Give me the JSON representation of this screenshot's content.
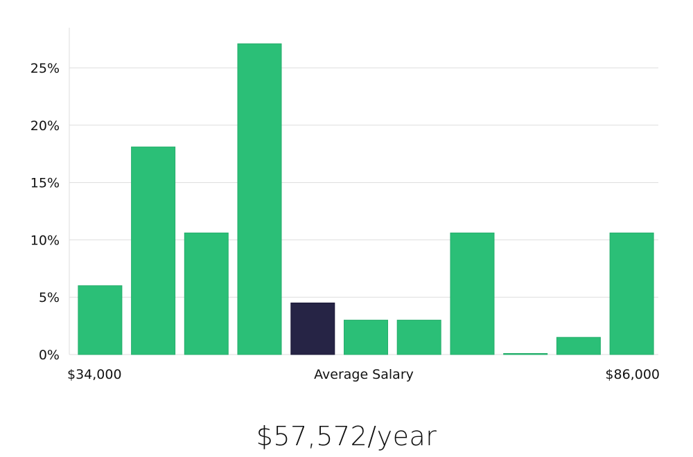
{
  "chart_data": {
    "type": "bar",
    "categories": [
      "1",
      "2",
      "3",
      "4",
      "5",
      "6",
      "7",
      "8",
      "9",
      "10",
      "11"
    ],
    "values": [
      6.0,
      18.1,
      10.6,
      27.1,
      4.5,
      3.0,
      3.0,
      10.6,
      0.0,
      1.5,
      10.6
    ],
    "highlight_index": 4,
    "ylim": [
      0,
      28.5
    ],
    "yticks": [
      0,
      5,
      10,
      15,
      20,
      25
    ],
    "ytick_labels": [
      "0%",
      "5%",
      "10%",
      "15%",
      "20%",
      "25%"
    ],
    "x_min_label": "$34,000",
    "x_center_label": "Average Salary",
    "x_max_label": "$86,000",
    "grid": true,
    "bar_color": "#2bbf77",
    "highlight_color": "#262445",
    "grid_color": "#dddddd"
  },
  "summary": {
    "salary_text": "$57,572/year"
  }
}
